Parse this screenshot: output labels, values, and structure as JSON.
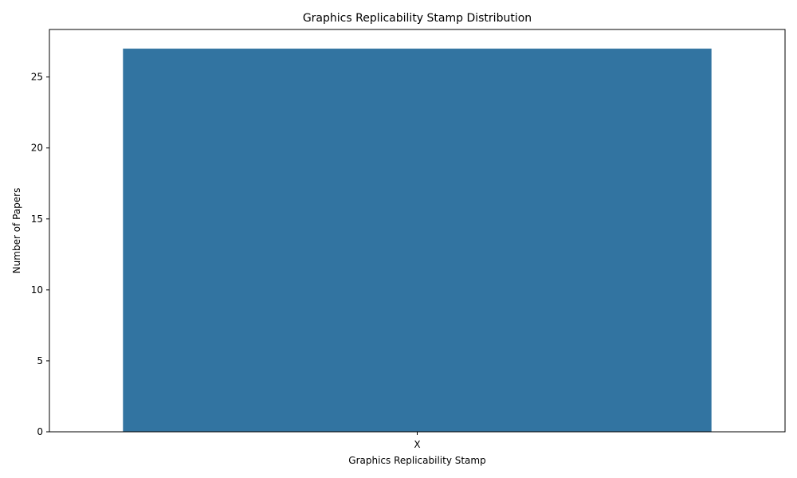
{
  "chart_data": {
    "type": "bar",
    "title": "Graphics Replicability Stamp Distribution",
    "xlabel": "Graphics Replicability Stamp",
    "ylabel": "Number of Papers",
    "categories": [
      "X"
    ],
    "values": [
      27
    ],
    "ylim": [
      0,
      28.35
    ],
    "yticks": [
      0,
      5,
      10,
      15,
      20,
      25
    ],
    "grid": false,
    "legend": "none",
    "bar_color": "#3274a1"
  }
}
